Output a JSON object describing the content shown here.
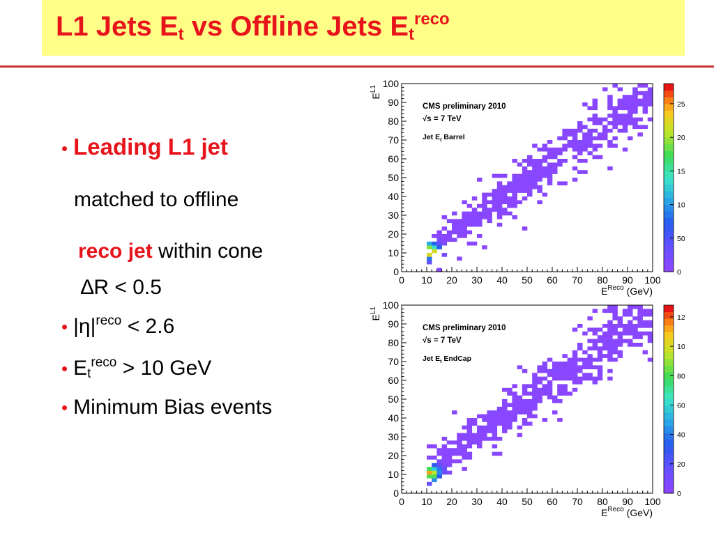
{
  "slide": {
    "title_main": "L1 Jets E",
    "title_sub_t": "t",
    "title_mid": " vs Offline Jets E",
    "title_sub_t2": "t",
    "title_sup": "reco"
  },
  "bullets": {
    "b1_label": "Leading L1 jet",
    "b1_line2": "matched to offline",
    "b1_line3_red": "reco jet",
    "b1_line3_rest": " within  cone",
    "b1_line4": "∆R < 0.5",
    "b2_pre": "|η|",
    "b2_sup": "reco",
    "b2_post": " < 2.6",
    "b3_pre": "E",
    "b3_sub": "t",
    "b3_sup": "reco",
    "b3_post": " > 10 GeV",
    "b4": "Minimum Bias events"
  },
  "chart_data": [
    {
      "type": "heatmap",
      "legend_line1": "CMS preliminary 2010",
      "legend_line2": "√s = 7 TeV",
      "legend_line3": "Jet E",
      "legend_line3_sub": "t",
      "legend_line3_rest": " Barrel",
      "ylabel": "E",
      "ylabel_sup": "L1",
      "xlabel": "E",
      "xlabel_sup": "Reco",
      "xlabel_rest": " (GeV)",
      "xlim": [
        0,
        100
      ],
      "ylim": [
        0,
        100
      ],
      "xticks": [
        "0",
        "10",
        "20",
        "30",
        "40",
        "50",
        "60",
        "70",
        "80",
        "90",
        "100"
      ],
      "yticks": [
        "0",
        "10",
        "20",
        "30",
        "40",
        "50",
        "60",
        "70",
        "80",
        "90",
        "100"
      ],
      "colorbar_max": 2800,
      "colorbar_ticks": [
        "0",
        "500",
        "1000",
        "1500",
        "2000",
        "2500"
      ],
      "peak": 2800,
      "seed": 7
    },
    {
      "type": "heatmap",
      "legend_line1": "CMS preliminary 2010",
      "legend_line2": "√s = 7 TeV",
      "legend_line3": "Jet E",
      "legend_line3_sub": "t",
      "legend_line3_rest": " EndCap",
      "ylabel": "E",
      "ylabel_sup": "L1",
      "xlabel": "E",
      "xlabel_sup": "Reco",
      "xlabel_rest": " (GeV)",
      "xlim": [
        0,
        100
      ],
      "ylim": [
        0,
        100
      ],
      "xticks": [
        "0",
        "10",
        "20",
        "30",
        "40",
        "50",
        "60",
        "70",
        "80",
        "90",
        "100"
      ],
      "yticks": [
        "0",
        "10",
        "20",
        "30",
        "40",
        "50",
        "60",
        "70",
        "80",
        "90",
        "100"
      ],
      "colorbar_max": 1280,
      "colorbar_ticks": [
        "0",
        "200",
        "400",
        "600",
        "800",
        "1000",
        "1200"
      ],
      "peak": 1280,
      "seed": 13
    }
  ]
}
